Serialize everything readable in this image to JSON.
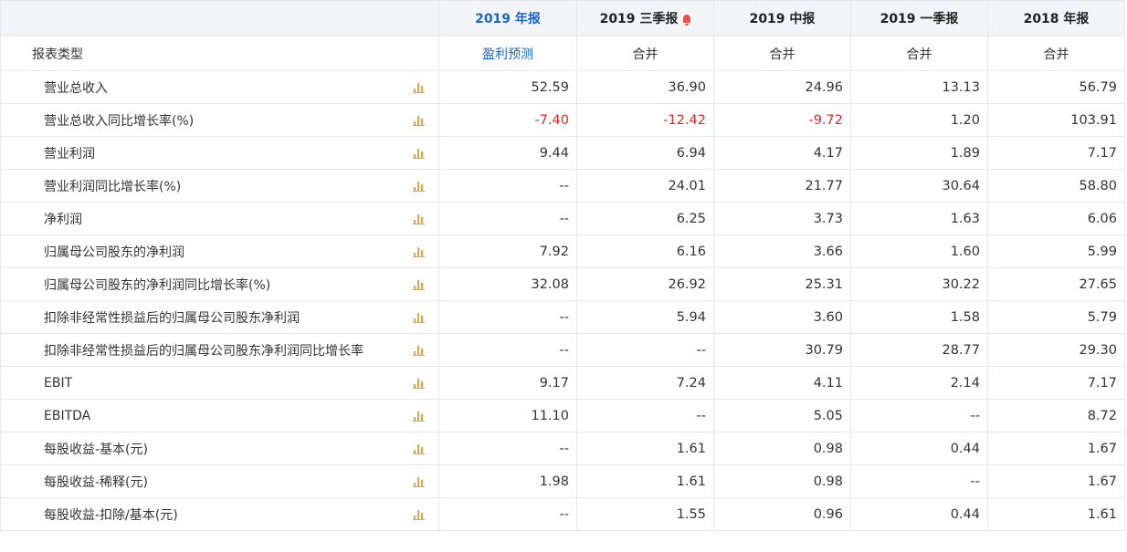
{
  "columns": [
    {
      "label": "2019 年报",
      "active": true,
      "bell": false,
      "type": "盈利预测",
      "type_link": true
    },
    {
      "label": "2019 三季报",
      "active": false,
      "bell": true,
      "type": "合并",
      "type_link": false
    },
    {
      "label": "2019 中报",
      "active": false,
      "bell": false,
      "type": "合并",
      "type_link": false
    },
    {
      "label": "2019 一季报",
      "active": false,
      "bell": false,
      "type": "合并",
      "type_link": false
    },
    {
      "label": "2018 年报",
      "active": false,
      "bell": false,
      "type": "合并",
      "type_link": false
    }
  ],
  "type_row_label": "报表类型",
  "rows": [
    {
      "label": "营业总收入",
      "values": [
        "52.59",
        "36.90",
        "24.96",
        "13.13",
        "56.79"
      ]
    },
    {
      "label": "营业总收入同比增长率(%)",
      "values": [
        "-7.40",
        "-12.42",
        "-9.72",
        "1.20",
        "103.91"
      ]
    },
    {
      "label": "营业利润",
      "values": [
        "9.44",
        "6.94",
        "4.17",
        "1.89",
        "7.17"
      ]
    },
    {
      "label": "营业利润同比增长率(%)",
      "values": [
        "--",
        "24.01",
        "21.77",
        "30.64",
        "58.80"
      ]
    },
    {
      "label": "净利润",
      "values": [
        "--",
        "6.25",
        "3.73",
        "1.63",
        "6.06"
      ]
    },
    {
      "label": "归属母公司股东的净利润",
      "values": [
        "7.92",
        "6.16",
        "3.66",
        "1.60",
        "5.99"
      ]
    },
    {
      "label": "归属母公司股东的净利润同比增长率(%)",
      "values": [
        "32.08",
        "26.92",
        "25.31",
        "30.22",
        "27.65"
      ]
    },
    {
      "label": "扣除非经常性损益后的归属母公司股东净利润",
      "values": [
        "--",
        "5.94",
        "3.60",
        "1.58",
        "5.79"
      ]
    },
    {
      "label": "扣除非经常性损益后的归属母公司股东净利润同比增长率",
      "values": [
        "--",
        "--",
        "30.79",
        "28.77",
        "29.30"
      ]
    },
    {
      "label": "EBIT",
      "values": [
        "9.17",
        "7.24",
        "4.11",
        "2.14",
        "7.17"
      ]
    },
    {
      "label": "EBITDA",
      "values": [
        "11.10",
        "--",
        "5.05",
        "--",
        "8.72"
      ]
    },
    {
      "label": "每股收益-基本(元)",
      "values": [
        "--",
        "1.61",
        "0.98",
        "0.44",
        "1.67"
      ]
    },
    {
      "label": "每股收益-稀释(元)",
      "values": [
        "1.98",
        "1.61",
        "0.98",
        "--",
        "1.67"
      ]
    },
    {
      "label": "每股收益-扣除/基本(元)",
      "values": [
        "--",
        "1.55",
        "0.96",
        "0.44",
        "1.61"
      ]
    }
  ],
  "icons": {
    "row_chart": "bar-chart-icon",
    "alert": "bell-icon"
  },
  "colors": {
    "accent": "#1a66c6",
    "negative": "#e0262b",
    "chart_icon": "#f0a33a",
    "alert": "#e8534b"
  }
}
